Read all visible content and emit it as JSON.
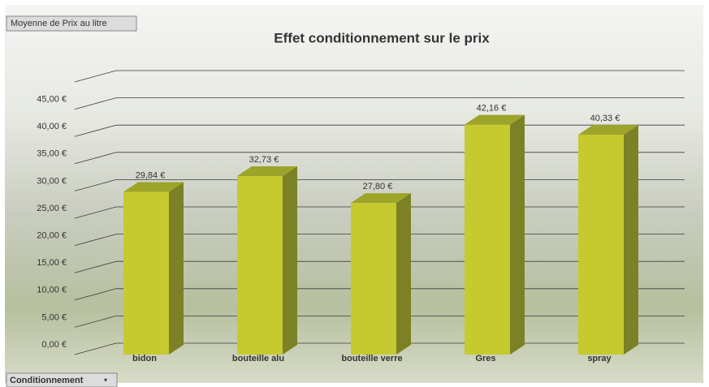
{
  "chart_data": {
    "type": "bar3d",
    "title": "Effet conditionnement sur le prix",
    "value_field": "Moyenne de Prix au litre",
    "axis_field": "Conditionnement",
    "categories": [
      "bidon",
      "bouteille alu",
      "bouteille verre",
      "Gres",
      "spray"
    ],
    "values": [
      29.84,
      32.73,
      27.8,
      42.16,
      40.33
    ],
    "value_labels": [
      "29,84 €",
      "32,73 €",
      "27,80 €",
      "42,16 €",
      "40,33 €"
    ],
    "color": "#c6ca2f",
    "ylim": [
      0,
      50
    ],
    "yticks": [
      {
        "value": 0,
        "label": "0,00 €"
      },
      {
        "value": 5,
        "label": "5,00 €"
      },
      {
        "value": 10,
        "label": "10,00 €"
      },
      {
        "value": 15,
        "label": "15,00 €"
      },
      {
        "value": 20,
        "label": "20,00 €"
      },
      {
        "value": 25,
        "label": "25,00 €"
      },
      {
        "value": 30,
        "label": "30,00 €"
      },
      {
        "value": 35,
        "label": "35,00 €"
      },
      {
        "value": 40,
        "label": "40,00 €"
      },
      {
        "value": 45,
        "label": "45,00 €"
      },
      {
        "value": 50,
        "label": ""
      }
    ],
    "grid": true
  }
}
